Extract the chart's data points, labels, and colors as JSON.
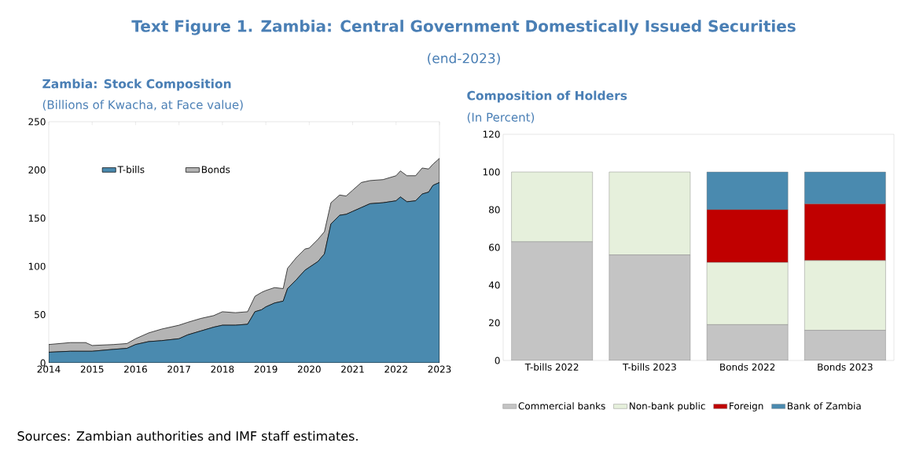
{
  "chart_data": [
    {
      "type": "other",
      "title": "Text Figure 1. Zambia: Central Government Domestically Issued Securities",
      "subtitle": "(end-2023)",
      "annotations": [
        "Sources: Zambian authorities and IMF staff estimates."
      ]
    },
    {
      "type": "area",
      "title": "Zambia: Stock Composition",
      "subtitle": "(Billions of Kwacha, at Face value)",
      "stacked": true,
      "legend": "top left",
      "x": [
        2014,
        2014.5,
        2014.85,
        2015,
        2015.5,
        2015.8,
        2016,
        2016.3,
        2016.6,
        2017,
        2017.2,
        2017.5,
        2017.8,
        2018,
        2018.3,
        2018.58,
        2018.75,
        2018.9,
        2019,
        2019.2,
        2019.4,
        2019.5,
        2019.7,
        2019.9,
        2020,
        2020.2,
        2020.35,
        2020.5,
        2020.7,
        2020.85,
        2021,
        2021.2,
        2021.4,
        2021.7,
        2022,
        2022.1,
        2022.25,
        2022.45,
        2022.6,
        2022.75,
        2022.85,
        2023
      ],
      "xlim": [
        2014,
        2023
      ],
      "xticks": [
        2014,
        2015,
        2016,
        2017,
        2018,
        2019,
        2020,
        2021,
        2022,
        2023
      ],
      "ylim": [
        0,
        250
      ],
      "yticks": [
        0,
        50,
        100,
        150,
        200,
        250
      ],
      "series": [
        {
          "name": "T-bills",
          "color": "#4a8aaf",
          "values": [
            11,
            12,
            12,
            12,
            14,
            15,
            19,
            22,
            23,
            25,
            29,
            33,
            37,
            39,
            39,
            40,
            53,
            55,
            58,
            62,
            64,
            77,
            86,
            96,
            99,
            105,
            113,
            144,
            153,
            154,
            157,
            161,
            165,
            166,
            168,
            172,
            167,
            168,
            175,
            177,
            184,
            187
          ]
        },
        {
          "name": "Bonds",
          "color": "#b4b4b4",
          "values": [
            8,
            9,
            9,
            6,
            5,
            5,
            6,
            9,
            12,
            14,
            13,
            13,
            12,
            14,
            13,
            13,
            16,
            18,
            17,
            16,
            13,
            21,
            23,
            22,
            20,
            23,
            23,
            22,
            21,
            19,
            22,
            26,
            24,
            24,
            26,
            27,
            27,
            26,
            27,
            24,
            22,
            25
          ]
        }
      ]
    },
    {
      "type": "bar",
      "title": "Composition of Holders",
      "subtitle": "(In Percent)",
      "stacked": true,
      "legend": "bottom",
      "categories": [
        "T-bills 2022",
        "T-bills 2023",
        "Bonds 2022",
        "Bonds 2023"
      ],
      "ylim": [
        0,
        120
      ],
      "yticks": [
        0,
        20,
        40,
        60,
        80,
        100,
        120
      ],
      "series": [
        {
          "name": "Commercial banks",
          "color": "#c4c4c4",
          "values": [
            63,
            56,
            19,
            16
          ]
        },
        {
          "name": "Non-bank public",
          "color": "#e6f0dc",
          "values": [
            37,
            44,
            33,
            37
          ]
        },
        {
          "name": "Foreign",
          "color": "#c00000",
          "values": [
            0,
            0,
            28,
            30
          ]
        },
        {
          "name": "Bank of Zambia",
          "color": "#4a8aaf",
          "values": [
            0,
            0,
            20,
            17
          ]
        }
      ]
    }
  ]
}
